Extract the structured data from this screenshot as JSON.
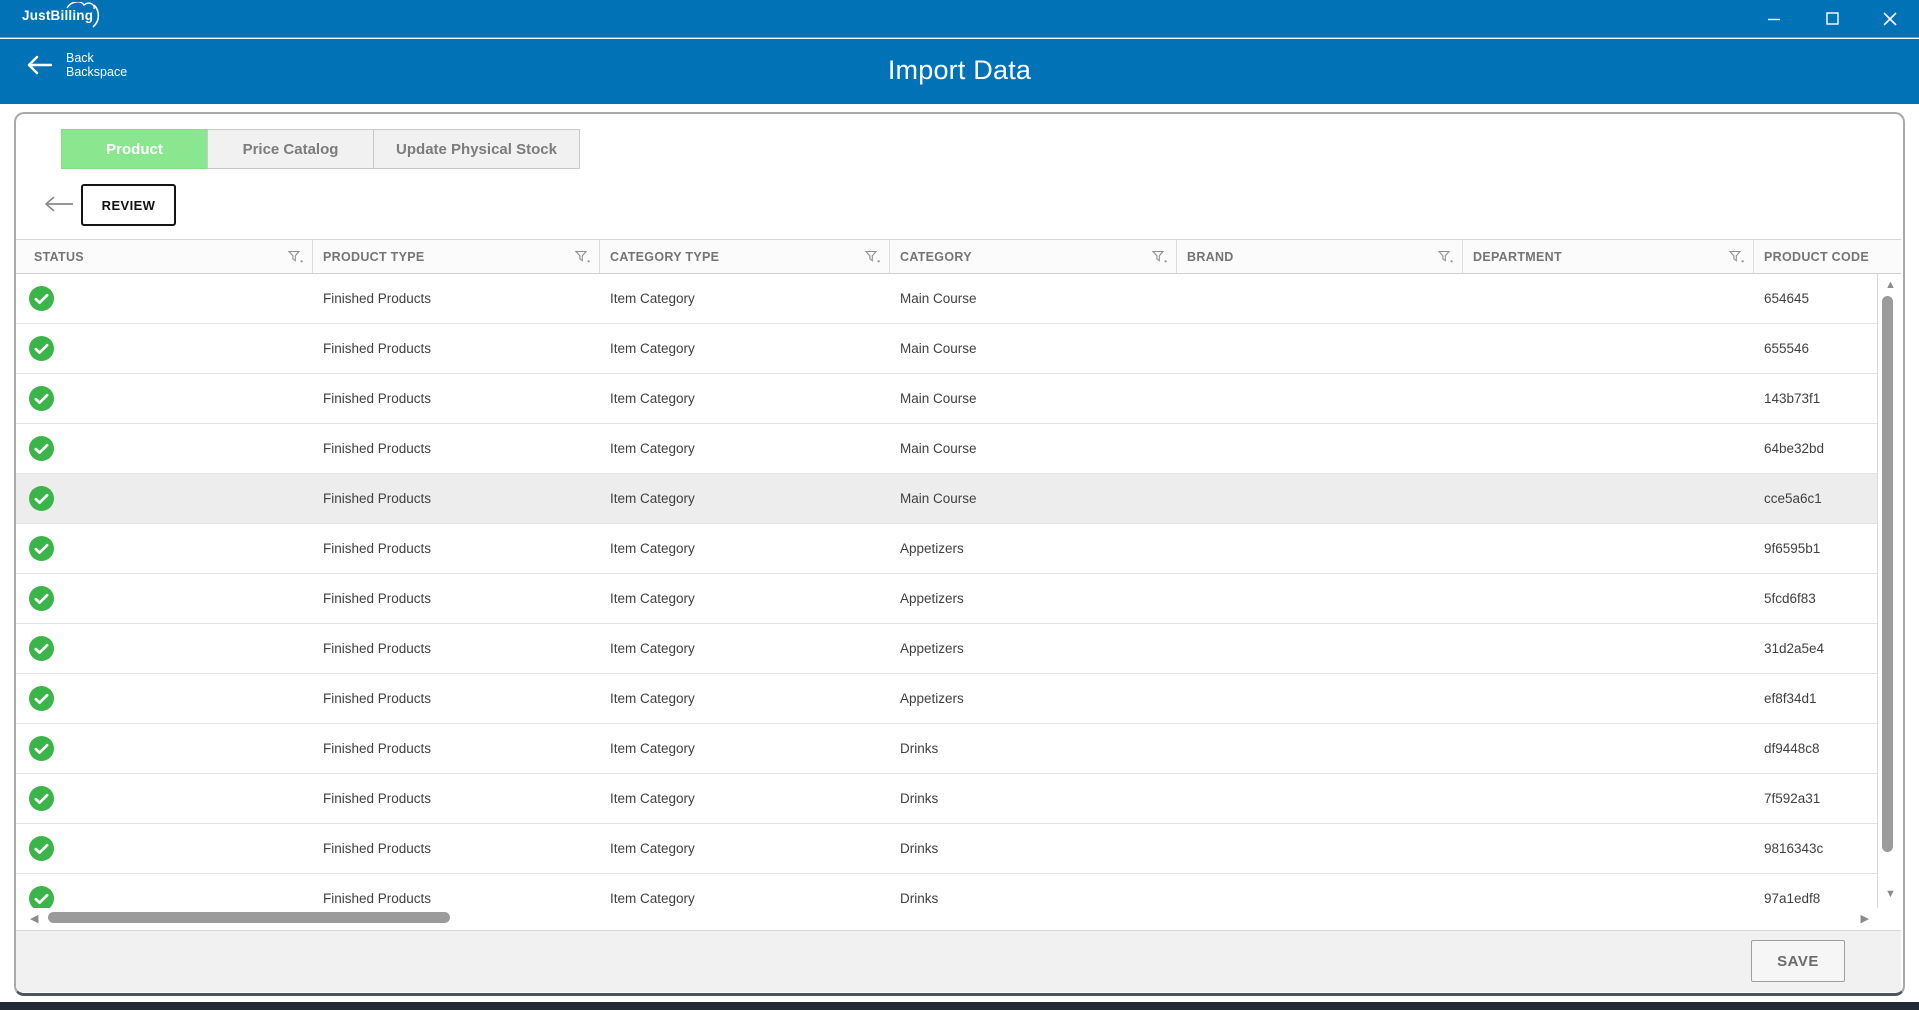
{
  "titlebar": {
    "app_name": "JustBilling",
    "window_control_icons": [
      "minimize-icon",
      "maximize-icon",
      "close-icon"
    ]
  },
  "header": {
    "back_line1": "Back",
    "back_line2": "Backspace",
    "title": "Import Data"
  },
  "tabs": [
    {
      "label": "Product",
      "active": true
    },
    {
      "label": "Price Catalog",
      "active": false
    },
    {
      "label": "Update Physical Stock",
      "active": false
    }
  ],
  "toolbar": {
    "review_label": "REVIEW"
  },
  "table": {
    "columns": [
      "STATUS",
      "PRODUCT TYPE",
      "CATEGORY TYPE",
      "CATEGORY",
      "BRAND",
      "DEPARTMENT",
      "PRODUCT CODE"
    ],
    "rows": [
      {
        "status": "success",
        "product_type": "Finished Products",
        "category_type": "Item Category",
        "category": "Main Course",
        "brand": "",
        "department": "",
        "product_code": "654645",
        "highlighted": false
      },
      {
        "status": "success",
        "product_type": "Finished Products",
        "category_type": "Item Category",
        "category": "Main Course",
        "brand": "",
        "department": "",
        "product_code": "655546",
        "highlighted": false
      },
      {
        "status": "success",
        "product_type": "Finished Products",
        "category_type": "Item Category",
        "category": "Main Course",
        "brand": "",
        "department": "",
        "product_code": "143b73f1",
        "highlighted": false
      },
      {
        "status": "success",
        "product_type": "Finished Products",
        "category_type": "Item Category",
        "category": "Main Course",
        "brand": "",
        "department": "",
        "product_code": "64be32bd",
        "highlighted": false
      },
      {
        "status": "success",
        "product_type": "Finished Products",
        "category_type": "Item Category",
        "category": "Main Course",
        "brand": "",
        "department": "",
        "product_code": "cce5a6c1",
        "highlighted": true
      },
      {
        "status": "success",
        "product_type": "Finished Products",
        "category_type": "Item Category",
        "category": "Appetizers",
        "brand": "",
        "department": "",
        "product_code": "9f6595b1",
        "highlighted": false
      },
      {
        "status": "success",
        "product_type": "Finished Products",
        "category_type": "Item Category",
        "category": "Appetizers",
        "brand": "",
        "department": "",
        "product_code": "5fcd6f83",
        "highlighted": false
      },
      {
        "status": "success",
        "product_type": "Finished Products",
        "category_type": "Item Category",
        "category": "Appetizers",
        "brand": "",
        "department": "",
        "product_code": "31d2a5e4",
        "highlighted": false
      },
      {
        "status": "success",
        "product_type": "Finished Products",
        "category_type": "Item Category",
        "category": "Appetizers",
        "brand": "",
        "department": "",
        "product_code": "ef8f34d1",
        "highlighted": false
      },
      {
        "status": "success",
        "product_type": "Finished Products",
        "category_type": "Item Category",
        "category": "Drinks",
        "brand": "",
        "department": "",
        "product_code": "df9448c8",
        "highlighted": false
      },
      {
        "status": "success",
        "product_type": "Finished Products",
        "category_type": "Item Category",
        "category": "Drinks",
        "brand": "",
        "department": "",
        "product_code": "7f592a31",
        "highlighted": false
      },
      {
        "status": "success",
        "product_type": "Finished Products",
        "category_type": "Item Category",
        "category": "Drinks",
        "brand": "",
        "department": "",
        "product_code": "9816343c",
        "highlighted": false
      },
      {
        "status": "success",
        "product_type": "Finished Products",
        "category_type": "Item Category",
        "category": "Drinks",
        "brand": "",
        "department": "",
        "product_code": "97a1edf8",
        "highlighted": false
      }
    ]
  },
  "footer": {
    "save_label": "SAVE"
  },
  "scrollbar_icons": [
    "up-arrow-icon",
    "down-arrow-icon",
    "left-arrow-icon",
    "right-arrow-icon"
  ],
  "colors": {
    "accent_blue": "#0272b7",
    "tab_green": "#8be78f",
    "status_green": "#3bb54a",
    "footer_gray": "#f1f1f1"
  }
}
